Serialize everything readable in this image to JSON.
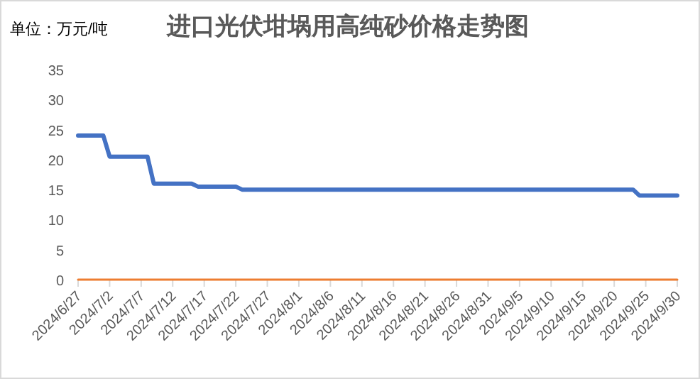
{
  "chart_data": {
    "type": "line",
    "title": "进口光伏坩埚用高纯砂价格走势图",
    "annotations": [
      "单位：万元/吨"
    ],
    "series": [
      {
        "color": "#4472c4",
        "x": [
          "2024-06-27",
          "2024-07-01",
          "2024-07-02",
          "2024-07-08",
          "2024-07-09",
          "2024-07-15",
          "2024-07-16",
          "2024-07-22",
          "2024-07-23",
          "2024-09-23",
          "2024-09-24",
          "2024-09-30"
        ],
        "values": [
          24,
          24,
          20.5,
          20.5,
          16,
          16,
          15.5,
          15.5,
          15,
          15,
          14,
          14
        ]
      },
      {
        "color": "#ed7d31",
        "x": [
          "2024-06-27",
          "2024-09-30"
        ],
        "values": [
          0,
          0
        ]
      }
    ],
    "xlim": [
      "2024-06-27",
      "2024-09-30"
    ],
    "xticks": [
      {
        "value": "2024-06-27",
        "label": "2024/6/27"
      },
      {
        "value": "2024-07-02",
        "label": "2024/7/2"
      },
      {
        "value": "2024-07-07",
        "label": "2024/7/7"
      },
      {
        "value": "2024-07-12",
        "label": "2024/7/12"
      },
      {
        "value": "2024-07-17",
        "label": "2024/7/17"
      },
      {
        "value": "2024-07-22",
        "label": "2024/7/22"
      },
      {
        "value": "2024-07-27",
        "label": "2024/7/27"
      },
      {
        "value": "2024-08-01",
        "label": "2024/8/1"
      },
      {
        "value": "2024-08-06",
        "label": "2024/8/6"
      },
      {
        "value": "2024-08-11",
        "label": "2024/8/11"
      },
      {
        "value": "2024-08-16",
        "label": "2024/8/16"
      },
      {
        "value": "2024-08-21",
        "label": "2024/8/21"
      },
      {
        "value": "2024-08-26",
        "label": "2024/8/26"
      },
      {
        "value": "2024-08-31",
        "label": "2024/8/31"
      },
      {
        "value": "2024-09-05",
        "label": "2024/9/5"
      },
      {
        "value": "2024-09-10",
        "label": "2024/9/10"
      },
      {
        "value": "2024-09-15",
        "label": "2024/9/15"
      },
      {
        "value": "2024-09-20",
        "label": "2024/9/20"
      },
      {
        "value": "2024-09-25",
        "label": "2024/9/25"
      },
      {
        "value": "2024-09-30",
        "label": "2024/9/30"
      }
    ],
    "ylim": [
      0,
      35
    ],
    "yticks": [
      0,
      5,
      10,
      15,
      20,
      25,
      30,
      35
    ],
    "grid": false,
    "marker": "none",
    "line_style": "solid"
  }
}
